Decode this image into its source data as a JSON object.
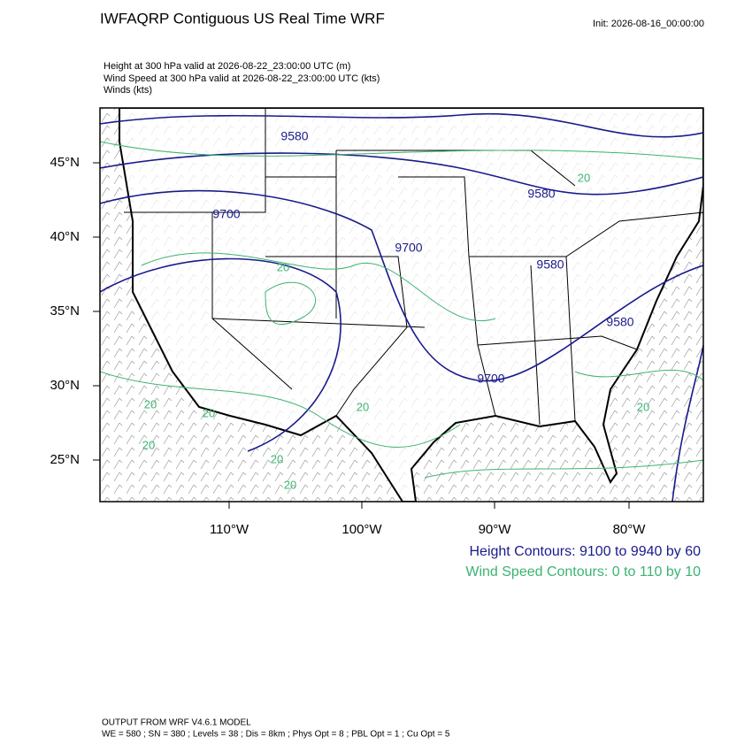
{
  "header": {
    "title": "IWFAQRP Contiguous US Real Time WRF",
    "init": "Init: 2026-08-16_00:00:00"
  },
  "fields": [
    "Height at 300 hPa valid at 2026-08-22_23:00:00 UTC   (m)",
    "Wind Speed at 300 hPa valid at 2026-08-22_23:00:00 UTC   (kts)",
    "Winds   (kts)"
  ],
  "map": {
    "lat_labels": [
      "45°N",
      "40°N",
      "35°N",
      "30°N",
      "25°N"
    ],
    "lon_labels": [
      "110°W",
      "100°W",
      "90°W",
      "80°W"
    ],
    "height_labels": [
      "9580",
      "9700",
      "9700",
      "9580",
      "9580",
      "9700",
      "9580"
    ],
    "wind_labels": [
      "20",
      "20",
      "20",
      "20",
      "20",
      "20",
      "20",
      "20",
      "20"
    ]
  },
  "legend": {
    "height": "Height Contours: 9100 to 9940 by 60",
    "wind": "Wind Speed Contours: 0 to 110 by 10"
  },
  "footer": {
    "model": "OUTPUT FROM WRF V4.6.1 MODEL",
    "settings": "WE = 580 ; SN = 380 ; Levels = 38 ; Dis = 8km ; Phys Opt = 8 ; PBL Opt = 1 ; Cu Opt = 5"
  }
}
